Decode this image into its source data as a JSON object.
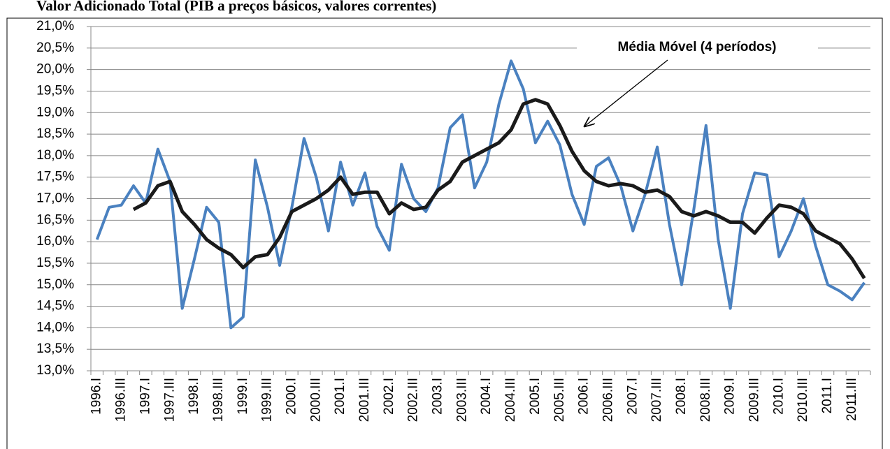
{
  "chart_data": {
    "type": "line",
    "title": "Valor Adicionado Total (PIB a preços básicos, valores correntes)",
    "categories": [
      "1996.I",
      null,
      "1996.III",
      null,
      "1997.I",
      null,
      "1997.III",
      null,
      "1998.I",
      null,
      "1998.III",
      null,
      "1999.I",
      null,
      "1999.III",
      null,
      "2000.I",
      null,
      "2000.III",
      null,
      "2001.I",
      null,
      "2001.III",
      null,
      "2002.I",
      null,
      "2002.III",
      null,
      "2003.I",
      null,
      "2003.III",
      null,
      "2004.I",
      null,
      "2004.III",
      null,
      "2005.I",
      null,
      "2005.III",
      null,
      "2006.I",
      null,
      "2006.III",
      null,
      "2007.I",
      null,
      "2007.III",
      null,
      "2008.I",
      null,
      "2008.III",
      null,
      "2009.I",
      null,
      "2009.III",
      null,
      "2010.I",
      null,
      "2010.III",
      null,
      "2011.I",
      null,
      "2011.III",
      null
    ],
    "series": [
      {
        "color": "#4a81c0",
        "values": [
          16.05,
          16.8,
          16.85,
          17.3,
          16.9,
          18.15,
          17.4,
          14.45,
          15.6,
          16.8,
          16.45,
          14.0,
          14.25,
          17.9,
          16.8,
          15.45,
          16.8,
          18.4,
          17.5,
          16.25,
          17.85,
          16.85,
          17.6,
          16.35,
          15.8,
          17.8,
          17.0,
          16.7,
          17.25,
          18.65,
          18.95,
          17.25,
          17.85,
          19.2,
          20.2,
          19.55,
          18.3,
          18.8,
          18.25,
          17.1,
          16.4,
          17.75,
          17.95,
          17.3,
          16.25,
          17.1,
          18.2,
          16.4,
          15.0,
          16.75,
          18.7,
          16.05,
          14.45,
          16.65,
          17.6,
          17.55,
          15.65,
          16.25,
          17.0,
          15.9,
          15.0,
          14.85,
          14.65,
          15.05
        ]
      },
      {
        "name": "Média Móvel (4 períodos)",
        "color": "#1a1a1a",
        "values": [
          null,
          null,
          null,
          16.75,
          16.9,
          17.3,
          17.4,
          16.7,
          16.4,
          16.05,
          15.85,
          15.7,
          15.4,
          15.65,
          15.7,
          16.1,
          16.7,
          16.85,
          17.0,
          17.2,
          17.5,
          17.1,
          17.15,
          17.15,
          16.65,
          16.9,
          16.75,
          16.8,
          17.2,
          17.4,
          17.85,
          18.0,
          18.15,
          18.3,
          18.6,
          19.2,
          19.3,
          19.2,
          18.7,
          18.1,
          17.65,
          17.4,
          17.3,
          17.35,
          17.3,
          17.15,
          17.2,
          17.05,
          16.7,
          16.6,
          16.7,
          16.6,
          16.45,
          16.45,
          16.2,
          16.55,
          16.85,
          16.8,
          16.65,
          16.25,
          16.1,
          15.95,
          15.6,
          15.15
        ]
      }
    ],
    "ylim": [
      13,
      21
    ],
    "yticks": [
      {
        "value": 13,
        "label": "13,0%"
      },
      {
        "value": 13.5,
        "label": "13,5%"
      },
      {
        "value": 14,
        "label": "14,0%"
      },
      {
        "value": 14.5,
        "label": "14,5%"
      },
      {
        "value": 15,
        "label": "15,0%"
      },
      {
        "value": 15.5,
        "label": "15,5%"
      },
      {
        "value": 16,
        "label": "16,0%"
      },
      {
        "value": 16.5,
        "label": "16,5%"
      },
      {
        "value": 17,
        "label": "17,0%"
      },
      {
        "value": 17.5,
        "label": "17,5%"
      },
      {
        "value": 18,
        "label": "18,0%"
      },
      {
        "value": 18.5,
        "label": "18,5%"
      },
      {
        "value": 19,
        "label": "19,0%"
      },
      {
        "value": 19.5,
        "label": "19,5%"
      },
      {
        "value": 20,
        "label": "20,0%"
      },
      {
        "value": 20.5,
        "label": "20,5%"
      },
      {
        "value": 21,
        "label": "21,0%"
      }
    ],
    "grid": true
  }
}
